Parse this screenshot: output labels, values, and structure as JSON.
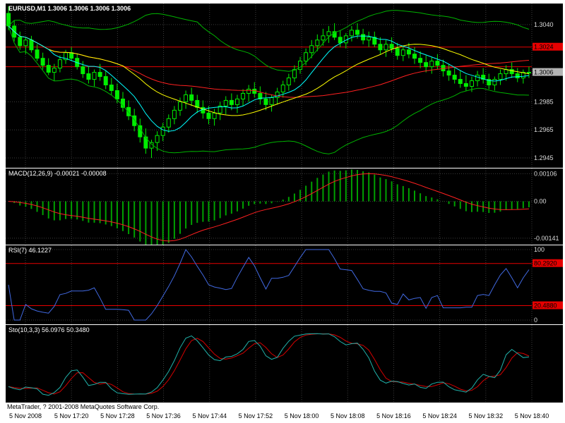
{
  "window": {
    "copyright": "MetaTrader, ? 2001-2008 MetaQuotes Software Corp."
  },
  "main_panel": {
    "title": "EURUSD,M1 1.3006 1.3006 1.3006 1.3006",
    "grid_labels": [
      {
        "text": "1.3040",
        "value": 1.304
      },
      {
        "text": "1.2985",
        "value": 1.2985
      },
      {
        "text": "1.2965",
        "value": 1.2965
      },
      {
        "text": "1.2945",
        "value": 1.2945
      }
    ],
    "red_levels": [
      {
        "value": 1.3024,
        "label": "1.3024"
      },
      {
        "value": 1.301,
        "label": ""
      }
    ],
    "current_price": {
      "value": 1.3006,
      "label": "1.3006"
    }
  },
  "macd_panel": {
    "title": "MACD(12,26,9) -0.00021 -0.00008",
    "grid_labels": [
      {
        "text": "0.00106",
        "value": 0.00106
      },
      {
        "text": "0.00",
        "value": 0
      },
      {
        "text": "-0.00141",
        "value": -0.00141
      }
    ]
  },
  "rsi_panel": {
    "title": "RSI(7) 46.1227",
    "grid_labels": [
      {
        "text": "100",
        "value": 100
      },
      {
        "text": "0",
        "value": 0
      }
    ],
    "red_levels": [
      {
        "value": 80.292,
        "label": "80.2920"
      },
      {
        "value": 20.488,
        "label": "20.4880"
      }
    ]
  },
  "sto_panel": {
    "title": "Sto(10,3,3) 56.0976 50.3480",
    "grid_labels": []
  },
  "chart_data": {
    "type": "candlestick",
    "title": "EURUSD,M1",
    "symbol": "EURUSD",
    "timeframe": "M1",
    "ylim": [
      1.294,
      1.3053
    ],
    "time_labels": [
      "5 Nov 2008",
      "5 Nov 17:20",
      "5 Nov 17:28",
      "5 Nov 17:36",
      "5 Nov 17:44",
      "5 Nov 17:52",
      "5 Nov 18:00",
      "5 Nov 18:08",
      "5 Nov 18:16",
      "5 Nov 18:24",
      "5 Nov 18:32",
      "5 Nov 18:40"
    ],
    "colors": {
      "background": "#000000",
      "grid": "#3C3C3C",
      "candle": "#00EE00",
      "level": "#E60000",
      "axis_text": "#DCDCDC"
    },
    "overlays": [
      {
        "type": "bollinger",
        "period": 34,
        "deviation": 2,
        "color": "#00B400"
      },
      {
        "type": "sma",
        "period": 44,
        "color": "#FF2020"
      },
      {
        "type": "sma",
        "period": 21,
        "color": "#FFFF00"
      },
      {
        "type": "sma",
        "period": 8,
        "color": "#00FFFF"
      }
    ],
    "ohlc": [
      [
        1.3048,
        1.3053,
        1.3036,
        1.3039
      ],
      [
        1.3039,
        1.3043,
        1.3028,
        1.3031
      ],
      [
        1.3031,
        1.3035,
        1.3022,
        1.3025
      ],
      [
        1.3025,
        1.3031,
        1.3019,
        1.3029
      ],
      [
        1.3029,
        1.3032,
        1.302,
        1.3022
      ],
      [
        1.3022,
        1.3026,
        1.3014,
        1.3016
      ],
      [
        1.3016,
        1.302,
        1.3008,
        1.3011
      ],
      [
        1.3011,
        1.3016,
        1.3004,
        1.3006
      ],
      [
        1.3006,
        1.3012,
        1.3,
        1.3009
      ],
      [
        1.3009,
        1.3018,
        1.3006,
        1.3015
      ],
      [
        1.3015,
        1.3022,
        1.3012,
        1.302
      ],
      [
        1.302,
        1.3024,
        1.3014,
        1.3016
      ],
      [
        1.3016,
        1.3019,
        1.3008,
        1.301
      ],
      [
        1.301,
        1.3014,
        1.3002,
        1.3005
      ],
      [
        1.3005,
        1.301,
        1.2998,
        1.3001
      ],
      [
        1.3001,
        1.3008,
        1.2996,
        1.3006
      ],
      [
        1.3006,
        1.3012,
        1.3,
        1.3003
      ],
      [
        1.3003,
        1.3007,
        1.2994,
        1.2997
      ],
      [
        1.2997,
        1.3002,
        1.299,
        1.2993
      ],
      [
        1.2993,
        1.2998,
        1.2984,
        1.2987
      ],
      [
        1.2987,
        1.2992,
        1.2978,
        1.2981
      ],
      [
        1.2981,
        1.2986,
        1.2972,
        1.2975
      ],
      [
        1.2975,
        1.298,
        1.2964,
        1.2968
      ],
      [
        1.2968,
        1.2973,
        1.2956,
        1.296
      ],
      [
        1.296,
        1.2966,
        1.2948,
        1.2952
      ],
      [
        1.2952,
        1.2958,
        1.2945,
        1.2956
      ],
      [
        1.2956,
        1.2964,
        1.295,
        1.2961
      ],
      [
        1.2961,
        1.297,
        1.2957,
        1.2967
      ],
      [
        1.2967,
        1.2976,
        1.2963,
        1.2973
      ],
      [
        1.2973,
        1.2982,
        1.2969,
        1.2979
      ],
      [
        1.2979,
        1.2988,
        1.2975,
        1.2985
      ],
      [
        1.2985,
        1.2993,
        1.298,
        1.299
      ],
      [
        1.299,
        1.2995,
        1.2982,
        1.2986
      ],
      [
        1.2986,
        1.299,
        1.2977,
        1.2981
      ],
      [
        1.2981,
        1.2986,
        1.2973,
        1.2977
      ],
      [
        1.2977,
        1.2982,
        1.2969,
        1.2973
      ],
      [
        1.2973,
        1.298,
        1.2968,
        1.2977
      ],
      [
        1.2977,
        1.2985,
        1.2972,
        1.2982
      ],
      [
        1.2982,
        1.2989,
        1.2976,
        1.2986
      ],
      [
        1.2986,
        1.2991,
        1.2979,
        1.2983
      ],
      [
        1.2983,
        1.299,
        1.2977,
        1.2987
      ],
      [
        1.2987,
        1.2994,
        1.2982,
        1.2991
      ],
      [
        1.2991,
        1.2997,
        1.2985,
        1.2994
      ],
      [
        1.2994,
        1.2999,
        1.2988,
        1.2991
      ],
      [
        1.2991,
        1.2996,
        1.2983,
        1.2987
      ],
      [
        1.2987,
        1.2992,
        1.2979,
        1.2983
      ],
      [
        1.2983,
        1.299,
        1.2978,
        1.2988
      ],
      [
        1.2988,
        1.2995,
        1.2983,
        1.2992
      ],
      [
        1.2992,
        1.3,
        1.2988,
        1.2997
      ],
      [
        1.2997,
        1.3005,
        1.2993,
        1.3002
      ],
      [
        1.3002,
        1.3011,
        1.2999,
        1.3008
      ],
      [
        1.3008,
        1.3017,
        1.3005,
        1.3014
      ],
      [
        1.3014,
        1.3023,
        1.3011,
        1.302
      ],
      [
        1.302,
        1.3029,
        1.3016,
        1.3025
      ],
      [
        1.3025,
        1.3033,
        1.3021,
        1.3029
      ],
      [
        1.3029,
        1.3037,
        1.3025,
        1.3032
      ],
      [
        1.3032,
        1.3039,
        1.3027,
        1.3035
      ],
      [
        1.3035,
        1.3041,
        1.3029,
        1.3031
      ],
      [
        1.3031,
        1.3036,
        1.3024,
        1.3027
      ],
      [
        1.3027,
        1.3034,
        1.3023,
        1.3032
      ],
      [
        1.3032,
        1.3039,
        1.3028,
        1.3036
      ],
      [
        1.3036,
        1.3041,
        1.303,
        1.3033
      ],
      [
        1.3033,
        1.3037,
        1.3026,
        1.3029
      ],
      [
        1.3029,
        1.3035,
        1.3024,
        1.3031
      ],
      [
        1.3031,
        1.3035,
        1.3024,
        1.3026
      ],
      [
        1.3026,
        1.3031,
        1.3019,
        1.3022
      ],
      [
        1.3022,
        1.3029,
        1.3017,
        1.3026
      ],
      [
        1.3026,
        1.3031,
        1.302,
        1.3023
      ],
      [
        1.3023,
        1.3027,
        1.3015,
        1.3018
      ],
      [
        1.3018,
        1.3025,
        1.3014,
        1.3022
      ],
      [
        1.3022,
        1.3027,
        1.3016,
        1.3019
      ],
      [
        1.3019,
        1.3024,
        1.3012,
        1.3016
      ],
      [
        1.3016,
        1.3021,
        1.3009,
        1.3013
      ],
      [
        1.3013,
        1.3018,
        1.3006,
        1.301
      ],
      [
        1.301,
        1.3017,
        1.3005,
        1.3014
      ],
      [
        1.3014,
        1.3019,
        1.3008,
        1.3011
      ],
      [
        1.3011,
        1.3015,
        1.3003,
        1.3007
      ],
      [
        1.3007,
        1.3012,
        1.3,
        1.3004
      ],
      [
        1.3004,
        1.3009,
        1.2998,
        1.3001
      ],
      [
        1.3001,
        1.3007,
        1.2995,
        1.2998
      ],
      [
        1.2998,
        1.3004,
        1.2993,
        1.2996
      ],
      [
        1.2996,
        1.3003,
        1.2992,
        1.3
      ],
      [
        1.3,
        1.3007,
        1.2996,
        1.3004
      ],
      [
        1.3004,
        1.3009,
        1.2998,
        1.3001
      ],
      [
        1.3001,
        1.3005,
        1.2994,
        1.2997
      ],
      [
        1.2997,
        1.3003,
        1.2993,
        1.3001
      ],
      [
        1.3001,
        1.3008,
        1.2997,
        1.3005
      ],
      [
        1.3005,
        1.3011,
        1.3,
        1.3008
      ],
      [
        1.3008,
        1.3013,
        1.3002,
        1.3005
      ],
      [
        1.3005,
        1.3009,
        1.2999,
        1.3002
      ],
      [
        1.3002,
        1.3008,
        1.2998,
        1.3006
      ],
      [
        1.3006,
        1.301,
        1.3002,
        1.3006
      ]
    ],
    "indicators": {
      "macd": {
        "fast": 12,
        "slow": 26,
        "signal": 9,
        "value": -0.00021,
        "signal_value": -8e-05,
        "histogram_color": "#00A000",
        "signal_color": "#FF2020",
        "ylim": [
          -0.00155,
          0.00115
        ]
      },
      "rsi": {
        "period": 7,
        "value": 46.1227,
        "color": "#4169E1",
        "levels": [
          80.292,
          20.488
        ],
        "ylim": [
          0,
          100
        ]
      },
      "stochastic": {
        "k": 10,
        "d": 3,
        "slowing": 3,
        "k_value": 56.0976,
        "d_value": 50.348,
        "k_color": "#20B2AA",
        "d_color": "#D40000",
        "ylim": [
          0,
          100
        ]
      }
    }
  }
}
